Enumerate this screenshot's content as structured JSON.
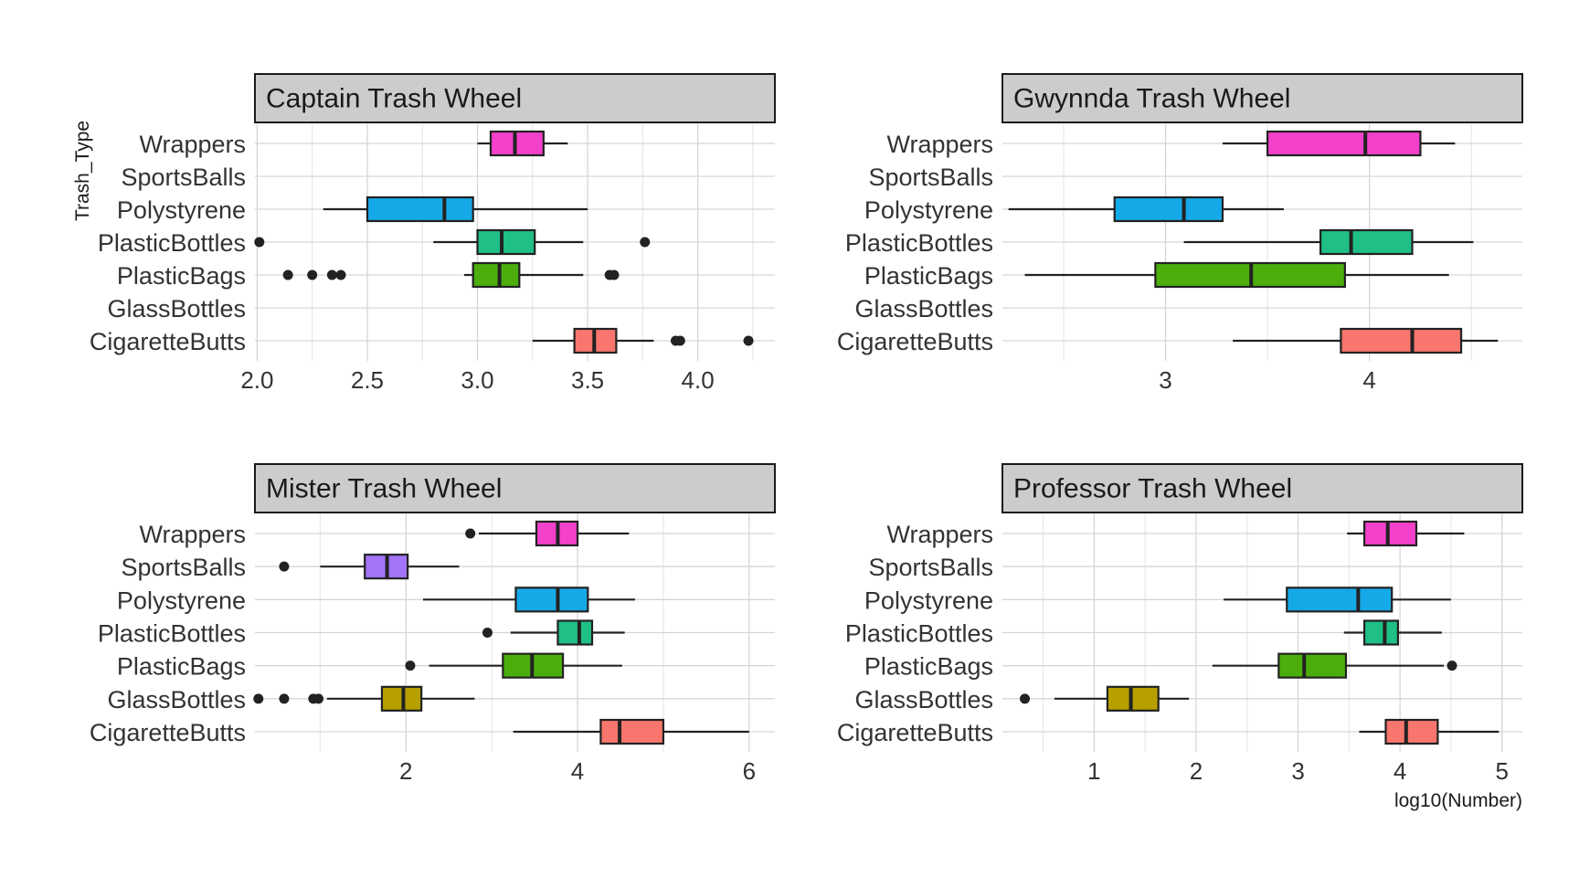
{
  "chart_data": {
    "type": "boxplot",
    "xlabel": "log10(Number)",
    "ylabel": "Trash_Type",
    "grid": true,
    "legend": "none",
    "categories": [
      "CigaretteButts",
      "GlassBottles",
      "PlasticBags",
      "PlasticBottles",
      "Polystyrene",
      "SportsBalls",
      "Wrappers"
    ],
    "category_colors": {
      "CigaretteButts": "#F8766D",
      "GlassBottles": "#B79F00",
      "PlasticBags": "#4CAE0C",
      "PlasticBottles": "#1FBF86",
      "Polystyrene": "#16A9E8",
      "SportsBalls": "#A373F8",
      "Wrappers": "#F341CB"
    },
    "panels": [
      {
        "title": "Captain Trash Wheel",
        "xlim": [
          1.99,
          4.35
        ],
        "xticks": [
          2.0,
          2.5,
          3.0,
          3.5,
          4.0
        ],
        "xtick_labels": [
          "2.0",
          "2.5",
          "3.0",
          "3.5",
          "4.0"
        ],
        "boxes": [
          {
            "category": "Wrappers",
            "min": 3.0,
            "q1": 3.06,
            "median": 3.17,
            "q3": 3.3,
            "max": 3.41,
            "outliers": []
          },
          {
            "category": "Polystyrene",
            "min": 2.3,
            "q1": 2.5,
            "median": 2.85,
            "q3": 2.98,
            "max": 3.5,
            "outliers": []
          },
          {
            "category": "PlasticBottles",
            "min": 2.8,
            "q1": 3.0,
            "median": 3.11,
            "q3": 3.26,
            "max": 3.48,
            "outliers": [
              2.01,
              3.76
            ]
          },
          {
            "category": "PlasticBags",
            "min": 2.94,
            "q1": 2.98,
            "median": 3.1,
            "q3": 3.19,
            "max": 3.48,
            "outliers": [
              2.14,
              2.25,
              2.34,
              2.38,
              3.6,
              3.62
            ]
          },
          {
            "category": "CigaretteButts",
            "min": 3.25,
            "q1": 3.44,
            "median": 3.53,
            "q3": 3.63,
            "max": 3.8,
            "outliers": [
              3.9,
              3.92,
              4.23
            ]
          }
        ]
      },
      {
        "title": "Gwynnda Trash Wheel",
        "xlim": [
          2.2,
          4.75
        ],
        "xticks": [
          3,
          4
        ],
        "xtick_labels": [
          "3",
          "4"
        ],
        "boxes": [
          {
            "category": "Wrappers",
            "min": 3.28,
            "q1": 3.5,
            "median": 3.98,
            "q3": 4.25,
            "max": 4.42,
            "outliers": []
          },
          {
            "category": "Polystyrene",
            "min": 2.23,
            "q1": 2.75,
            "median": 3.09,
            "q3": 3.28,
            "max": 3.58,
            "outliers": []
          },
          {
            "category": "PlasticBottles",
            "min": 3.09,
            "q1": 3.76,
            "median": 3.91,
            "q3": 4.21,
            "max": 4.51,
            "outliers": []
          },
          {
            "category": "PlasticBags",
            "min": 2.31,
            "q1": 2.95,
            "median": 3.42,
            "q3": 3.88,
            "max": 4.39,
            "outliers": []
          },
          {
            "category": "CigaretteButts",
            "min": 3.33,
            "q1": 3.86,
            "median": 4.21,
            "q3": 4.45,
            "max": 4.63,
            "outliers": []
          }
        ]
      },
      {
        "title": "Mister Trash Wheel",
        "xlim": [
          0.24,
          6.3
        ],
        "xticks": [
          2,
          4,
          6
        ],
        "xtick_labels": [
          "2",
          "4",
          "6"
        ],
        "boxes": [
          {
            "category": "Wrappers",
            "min": 2.85,
            "q1": 3.52,
            "median": 3.77,
            "q3": 4.0,
            "max": 4.6,
            "outliers": [
              2.75
            ]
          },
          {
            "category": "SportsBalls",
            "min": 1.0,
            "q1": 1.52,
            "median": 1.78,
            "q3": 2.02,
            "max": 2.62,
            "outliers": [
              0.58
            ]
          },
          {
            "category": "Polystyrene",
            "min": 2.2,
            "q1": 3.28,
            "median": 3.77,
            "q3": 4.12,
            "max": 4.67,
            "outliers": []
          },
          {
            "category": "PlasticBottles",
            "min": 3.22,
            "q1": 3.77,
            "median": 4.02,
            "q3": 4.17,
            "max": 4.55,
            "outliers": [
              2.95
            ]
          },
          {
            "category": "PlasticBags",
            "min": 2.27,
            "q1": 3.13,
            "median": 3.47,
            "q3": 3.83,
            "max": 4.52,
            "outliers": [
              2.05
            ]
          },
          {
            "category": "GlassBottles",
            "min": 1.08,
            "q1": 1.72,
            "median": 1.97,
            "q3": 2.18,
            "max": 2.8,
            "outliers": [
              0.28,
              0.58,
              0.92,
              0.98
            ]
          },
          {
            "category": "CigaretteButts",
            "min": 3.25,
            "q1": 4.27,
            "median": 4.49,
            "q3": 5.0,
            "max": 6.0,
            "outliers": []
          }
        ]
      },
      {
        "title": "Professor Trash Wheel",
        "xlim": [
          0.1,
          5.2
        ],
        "xticks": [
          1,
          2,
          3,
          4,
          5
        ],
        "xtick_labels": [
          "1",
          "2",
          "3",
          "4",
          "5"
        ],
        "boxes": [
          {
            "category": "Wrappers",
            "min": 3.48,
            "q1": 3.65,
            "median": 3.88,
            "q3": 4.16,
            "max": 4.63,
            "outliers": []
          },
          {
            "category": "Polystyrene",
            "min": 2.27,
            "q1": 2.89,
            "median": 3.59,
            "q3": 3.92,
            "max": 4.5,
            "outliers": []
          },
          {
            "category": "PlasticBottles",
            "min": 3.45,
            "q1": 3.65,
            "median": 3.85,
            "q3": 3.98,
            "max": 4.41,
            "outliers": []
          },
          {
            "category": "PlasticBags",
            "min": 2.16,
            "q1": 2.81,
            "median": 3.06,
            "q3": 3.47,
            "max": 4.43,
            "outliers": [
              4.51
            ]
          },
          {
            "category": "GlassBottles",
            "min": 0.61,
            "q1": 1.13,
            "median": 1.36,
            "q3": 1.63,
            "max": 1.93,
            "outliers": [
              0.32
            ]
          },
          {
            "category": "CigaretteButts",
            "min": 3.6,
            "q1": 3.86,
            "median": 4.06,
            "q3": 4.37,
            "max": 4.97,
            "outliers": []
          }
        ]
      }
    ]
  }
}
